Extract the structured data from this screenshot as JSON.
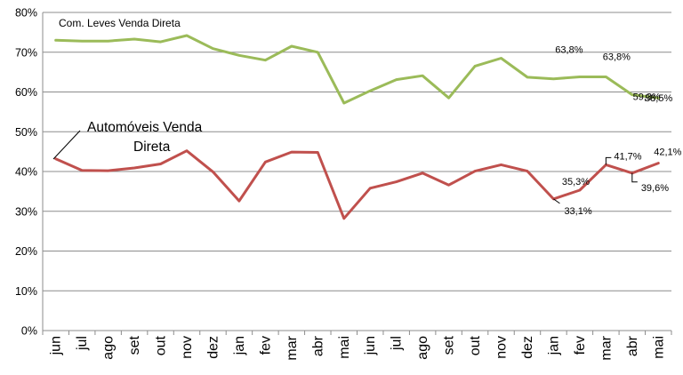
{
  "chart_data": {
    "type": "line",
    "title": "",
    "xlabel": "",
    "ylabel": "",
    "ylim": [
      0,
      80
    ],
    "yticks": [
      "0%",
      "10%",
      "20%",
      "30%",
      "40%",
      "50%",
      "60%",
      "70%",
      "80%"
    ],
    "grid": true,
    "categories": [
      "jun",
      "jul",
      "ago",
      "set",
      "out",
      "nov",
      "dez",
      "jan",
      "fev",
      "mar",
      "abr",
      "mai",
      "jun",
      "jul",
      "ago",
      "set",
      "out",
      "nov",
      "dez",
      "jan",
      "fev",
      "mar",
      "abr",
      "mai"
    ],
    "series": [
      {
        "name": "Com. Leves Venda Direta",
        "color": "#9bbb59",
        "values": [
          73.0,
          72.8,
          72.8,
          73.3,
          72.6,
          74.2,
          70.9,
          69.2,
          68.0,
          71.5,
          70.0,
          57.2,
          60.3,
          63.1,
          64.1,
          58.5,
          66.5,
          68.5,
          63.7,
          63.3,
          63.8,
          63.8,
          59.3,
          58.5
        ],
        "labels": [
          {
            "index": 20,
            "text": "63,8%"
          },
          {
            "index": 21,
            "text": "63,8%"
          },
          {
            "index": 22,
            "text": "59,3%"
          },
          {
            "index": 23,
            "text": "58,5%"
          }
        ]
      },
      {
        "name": "Automóveis Venda Direta",
        "color": "#c0504d",
        "values": [
          43.2,
          40.3,
          40.2,
          40.9,
          41.9,
          45.2,
          39.9,
          32.6,
          42.4,
          44.9,
          44.8,
          28.2,
          35.8,
          37.4,
          39.6,
          36.6,
          40.1,
          41.7,
          40.1,
          33.1,
          35.3,
          41.7,
          39.6,
          42.1
        ],
        "labels": [
          {
            "index": 19,
            "text": "33,1%"
          },
          {
            "index": 20,
            "text": "35,3%"
          },
          {
            "index": 21,
            "text": "41,7%"
          },
          {
            "index": 22,
            "text": "39,6%"
          },
          {
            "index": 23,
            "text": "42,1%"
          }
        ]
      }
    ]
  }
}
